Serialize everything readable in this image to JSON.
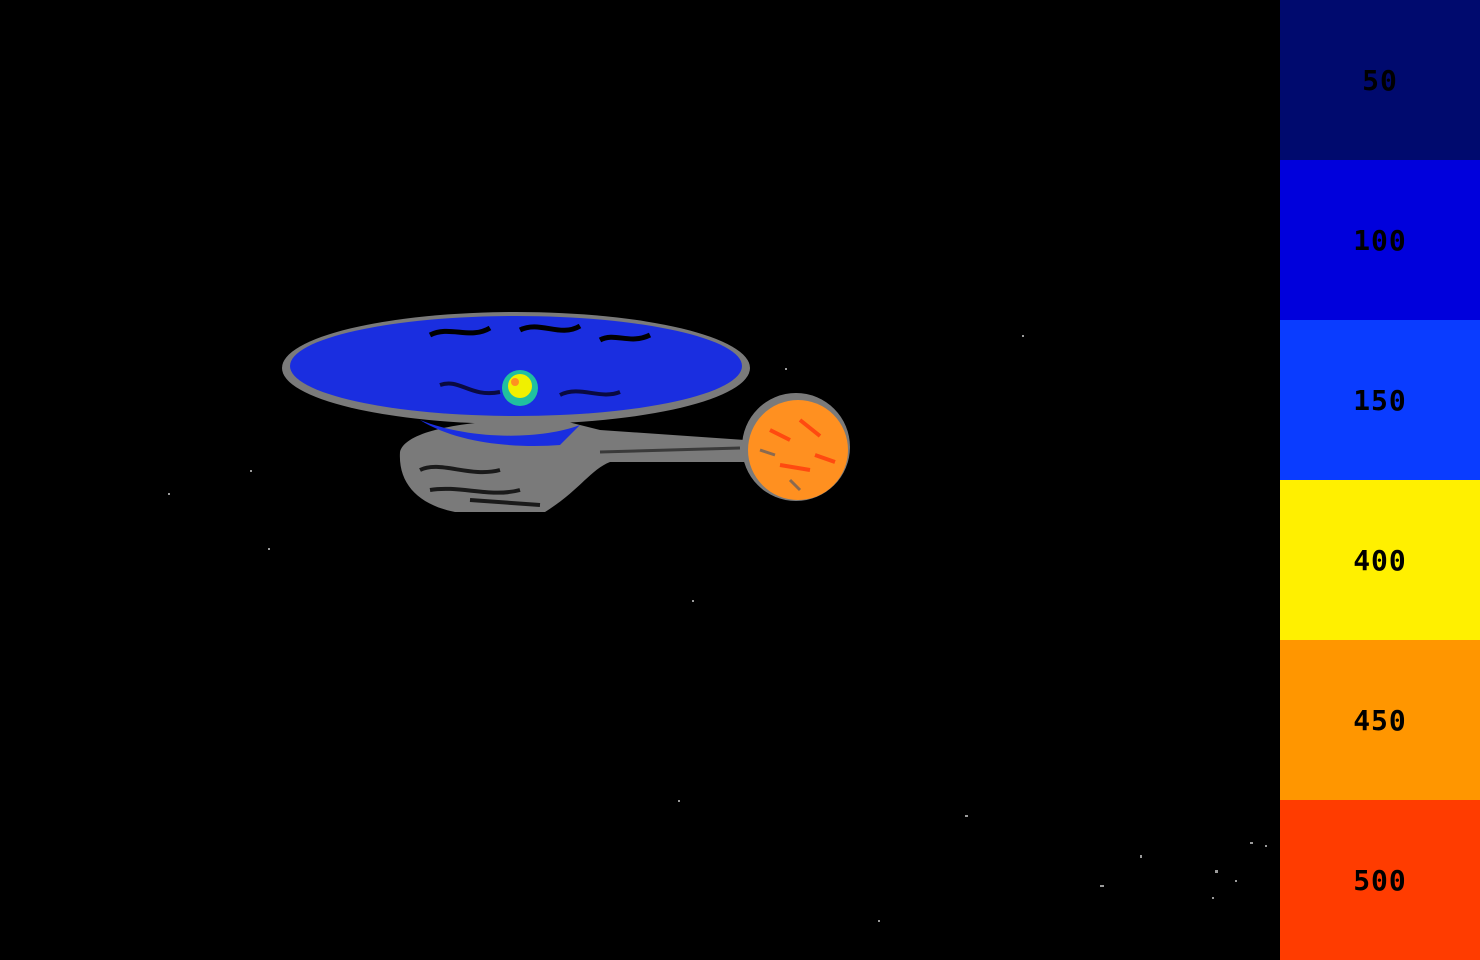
{
  "legend": {
    "bands": [
      {
        "label": "50",
        "color": "#000a6e"
      },
      {
        "label": "100",
        "color": "#0000dc"
      },
      {
        "label": "150",
        "color": "#0a3cff"
      },
      {
        "label": "400",
        "color": "#fff000"
      },
      {
        "label": "450",
        "color": "#ff9600"
      },
      {
        "label": "500",
        "color": "#ff3c00"
      }
    ]
  },
  "scene": {
    "background": "#000000",
    "subject": "starship-thermal-render",
    "colors": {
      "hull": "#7a7a7a",
      "saucer": "#1a2ee0",
      "hotspot": "#f0f000",
      "engine-glow": "#ff9020",
      "engine-hot": "#ff4a10"
    }
  }
}
